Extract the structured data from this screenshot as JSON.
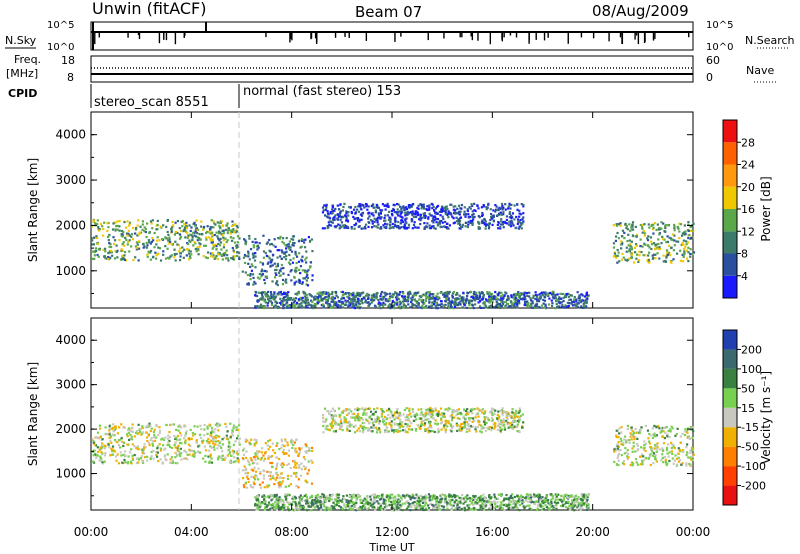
{
  "header": {
    "station": "Unwin (fitACF)",
    "beam": "Beam 07",
    "date": "08/Aug/2009"
  },
  "strip": {
    "nsky_label": "N.Sky",
    "nsky_ticks": [
      "10^5",
      "10^0"
    ],
    "nsearch_label": "N.Search",
    "nsearch_ticks": [
      "10^5",
      "10^0"
    ],
    "freq_label_1": "Freq.",
    "freq_label_2": "[MHz]",
    "freq_ticks": [
      "18",
      "8"
    ],
    "nave_label": "Nave",
    "nave_ticks": [
      "60",
      "0"
    ],
    "cpid_label": "CPID",
    "cpid_segments": [
      {
        "name": "stereo_scan 8551",
        "start_hour": 0.0,
        "end_hour": 5.9
      },
      {
        "name": "normal (fast stereo) 153",
        "start_hour": 5.9,
        "end_hour": 24.0
      }
    ]
  },
  "chart_data": [
    {
      "type": "heatmap",
      "title": "",
      "xlabel": "Time UT",
      "ylabel": "Slant Range [km]",
      "xlim": [
        0,
        24
      ],
      "ylim": [
        180,
        4500
      ],
      "x_tick_labels": [
        "00:00",
        "04:00",
        "08:00",
        "12:00",
        "16:00",
        "20:00",
        "00:00"
      ],
      "y_tick_labels": [
        "1000",
        "2000",
        "3000",
        "4000"
      ],
      "y_ticks": [
        1000,
        2000,
        3000,
        4000
      ],
      "colorbar": {
        "label": "Power [dB]",
        "tick_labels": [
          "4",
          "8",
          "12",
          "16",
          "20",
          "24",
          "28"
        ],
        "colors": [
          "#1a1aff",
          "#2a4fa0",
          "#3c7a6a",
          "#5aa84a",
          "#f0c800",
          "#ff9a10",
          "#ff6000",
          "#ee1010"
        ],
        "bounds": [
          0,
          4,
          8,
          12,
          16,
          20,
          24,
          28,
          32
        ]
      },
      "regions": [
        {
          "t0": 0.0,
          "t1": 5.9,
          "r0": 1250,
          "r1": 2150,
          "level": 3
        },
        {
          "t0": 6.0,
          "t1": 8.8,
          "r0": 700,
          "r1": 1800,
          "level": 2
        },
        {
          "t0": 9.2,
          "t1": 17.2,
          "r0": 1950,
          "r1": 2500,
          "level": 1
        },
        {
          "t0": 6.5,
          "t1": 19.8,
          "r0": 200,
          "r1": 560,
          "level": 2
        },
        {
          "t0": 20.8,
          "t1": 24.0,
          "r0": 1200,
          "r1": 2100,
          "level": 3
        }
      ]
    },
    {
      "type": "heatmap",
      "title": "",
      "xlabel": "Time UT",
      "ylabel": "Slant Range [km]",
      "xlim": [
        0,
        24
      ],
      "ylim": [
        180,
        4500
      ],
      "x_tick_labels": [
        "00:00",
        "04:00",
        "08:00",
        "12:00",
        "16:00",
        "20:00",
        "00:00"
      ],
      "y_tick_labels": [
        "1000",
        "2000",
        "3000",
        "4000"
      ],
      "y_ticks": [
        1000,
        2000,
        3000,
        4000
      ],
      "colorbar": {
        "label": "Velocity [m s⁻¹]",
        "tick_labels": [
          "200",
          "100",
          "50",
          "15",
          "-15",
          "-50",
          "-100",
          "-200"
        ],
        "colors": [
          "#2040b0",
          "#3a6a70",
          "#3a8040",
          "#78d050",
          "#c8c8c0",
          "#f0b000",
          "#ff8000",
          "#ff4000",
          "#e81010"
        ]
      },
      "regions": [
        {
          "t0": 0.0,
          "t1": 5.9,
          "r0": 1250,
          "r1": 2150,
          "level": 4
        },
        {
          "t0": 6.0,
          "t1": 8.8,
          "r0": 700,
          "r1": 1800,
          "level": 5
        },
        {
          "t0": 9.2,
          "t1": 17.2,
          "r0": 1950,
          "r1": 2500,
          "level": 4
        },
        {
          "t0": 6.5,
          "t1": 19.8,
          "r0": 200,
          "r1": 560,
          "level": 3
        },
        {
          "t0": 20.8,
          "t1": 24.0,
          "r0": 1200,
          "r1": 2100,
          "level": 4
        }
      ]
    }
  ]
}
